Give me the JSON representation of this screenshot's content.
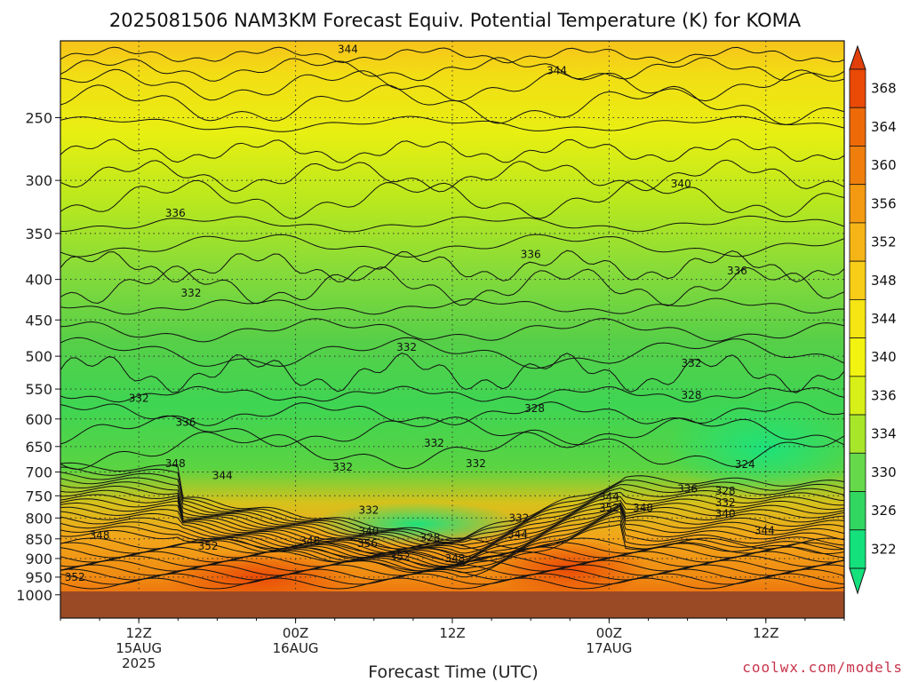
{
  "chart_data": {
    "type": "heatmap",
    "title": "2025081506 NAM3KM Forecast Equiv. Potential Temperature (K) for KOMA",
    "xlabel": "Forecast Time (UTC)",
    "ylabel": "",
    "y_ticks": [
      250,
      300,
      350,
      400,
      450,
      500,
      550,
      600,
      650,
      700,
      750,
      800,
      850,
      900,
      950,
      1000
    ],
    "y_scale": "log-pressure",
    "x_ticks": [
      {
        "hour": 6,
        "line1": "12Z",
        "line2": "15AUG",
        "line3": "2025"
      },
      {
        "hour": 18,
        "line1": "00Z",
        "line2": "16AUG",
        "line3": ""
      },
      {
        "hour": 30,
        "line1": "12Z",
        "line2": "",
        "line3": ""
      },
      {
        "hour": 42,
        "line1": "00Z",
        "line2": "17AUG",
        "line3": ""
      },
      {
        "hour": 54,
        "line1": "12Z",
        "line2": "",
        "line3": ""
      }
    ],
    "colorbar": {
      "labels": [
        "368",
        "364",
        "360",
        "356",
        "352",
        "348",
        "344",
        "340",
        "336",
        "334",
        "330",
        "326",
        "322"
      ]
    },
    "contour_labels": [
      {
        "text": "344",
        "t": 22,
        "p": 205
      },
      {
        "text": "344",
        "t": 38,
        "p": 218
      },
      {
        "text": "340",
        "t": 47.5,
        "p": 303
      },
      {
        "text": "336",
        "t": 8.8,
        "p": 330
      },
      {
        "text": "336",
        "t": 36,
        "p": 372
      },
      {
        "text": "336",
        "t": 51.8,
        "p": 390
      },
      {
        "text": "332",
        "t": 10,
        "p": 416
      },
      {
        "text": "332",
        "t": 26.5,
        "p": 487
      },
      {
        "text": "332",
        "t": 48.3,
        "p": 510
      },
      {
        "text": "332",
        "t": 6,
        "p": 565
      },
      {
        "text": "328",
        "t": 36.3,
        "p": 582
      },
      {
        "text": "328",
        "t": 48.3,
        "p": 560
      },
      {
        "text": "336",
        "t": 9.6,
        "p": 606
      },
      {
        "text": "332",
        "t": 28.6,
        "p": 644
      },
      {
        "text": "348",
        "t": 8.8,
        "p": 683
      },
      {
        "text": "332",
        "t": 21.6,
        "p": 690
      },
      {
        "text": "332",
        "t": 31.8,
        "p": 683
      },
      {
        "text": "324",
        "t": 52.4,
        "p": 685
      },
      {
        "text": "344",
        "t": 12.4,
        "p": 707
      },
      {
        "text": "336",
        "t": 48,
        "p": 735
      },
      {
        "text": "328",
        "t": 50.9,
        "p": 740
      },
      {
        "text": "344",
        "t": 42,
        "p": 752
      },
      {
        "text": "332",
        "t": 50.9,
        "p": 765
      },
      {
        "text": "352",
        "t": 42,
        "p": 777
      },
      {
        "text": "348",
        "t": 44.6,
        "p": 777
      },
      {
        "text": "332",
        "t": 23.6,
        "p": 782
      },
      {
        "text": "340",
        "t": 50.9,
        "p": 790
      },
      {
        "text": "332",
        "t": 35.1,
        "p": 800
      },
      {
        "text": "344",
        "t": 53.9,
        "p": 830
      },
      {
        "text": "340",
        "t": 23.6,
        "p": 832
      },
      {
        "text": "344",
        "t": 35,
        "p": 840
      },
      {
        "text": "328",
        "t": 28.3,
        "p": 847
      },
      {
        "text": "348",
        "t": 3,
        "p": 842
      },
      {
        "text": "348",
        "t": 19.1,
        "p": 855
      },
      {
        "text": "356",
        "t": 23.5,
        "p": 862
      },
      {
        "text": "352",
        "t": 11.3,
        "p": 868
      },
      {
        "text": "352",
        "t": 26,
        "p": 895
      },
      {
        "text": "348",
        "t": 30.2,
        "p": 900
      },
      {
        "text": "352",
        "t": 1.1,
        "p": 950
      }
    ]
  },
  "credit": "coolwx.com/models",
  "colors": {
    "ground": "#9b4a26",
    "credit": "#c8344b"
  }
}
